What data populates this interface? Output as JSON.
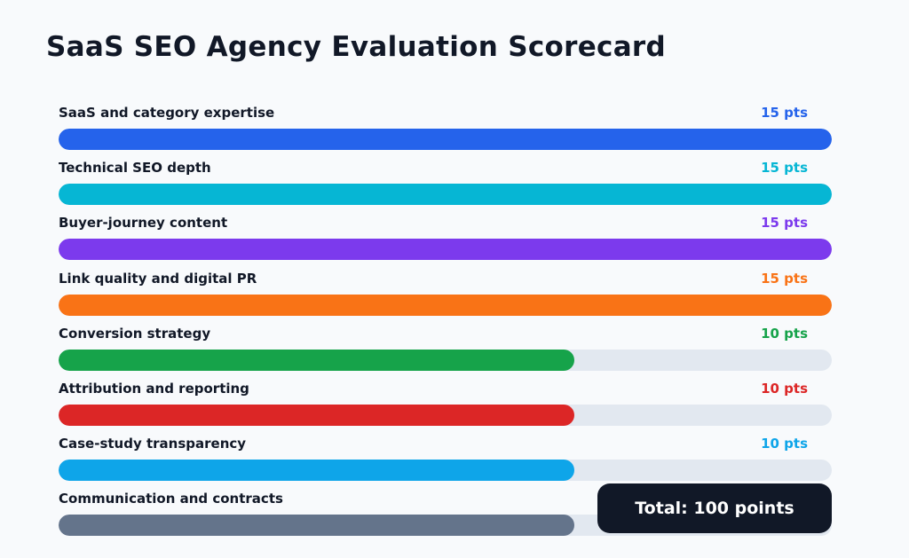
{
  "chart_data": {
    "type": "bar",
    "orientation": "horizontal",
    "title": "SaaS SEO Agency Evaluation Scorecard",
    "xlim": [
      0,
      15
    ],
    "grid": false,
    "categories": [
      "SaaS and category expertise",
      "Technical SEO depth",
      "Buyer-journey content",
      "Link quality and digital PR",
      "Conversion strategy",
      "Attribution and reporting",
      "Case-study transparency",
      "Communication and contracts"
    ],
    "values": [
      15,
      15,
      15,
      15,
      10,
      10,
      10,
      10
    ],
    "value_labels": [
      "15 pts",
      "15 pts",
      "15 pts",
      "15 pts",
      "10 pts",
      "10 pts",
      "10 pts",
      ""
    ],
    "colors": [
      "#2563eb",
      "#06b6d4",
      "#7c3aed",
      "#f97316",
      "#16a34a",
      "#dc2626",
      "#0ea5e9",
      "#64748b"
    ],
    "track_color": "#e2e8f0",
    "total_label": "Total: 100 points"
  }
}
